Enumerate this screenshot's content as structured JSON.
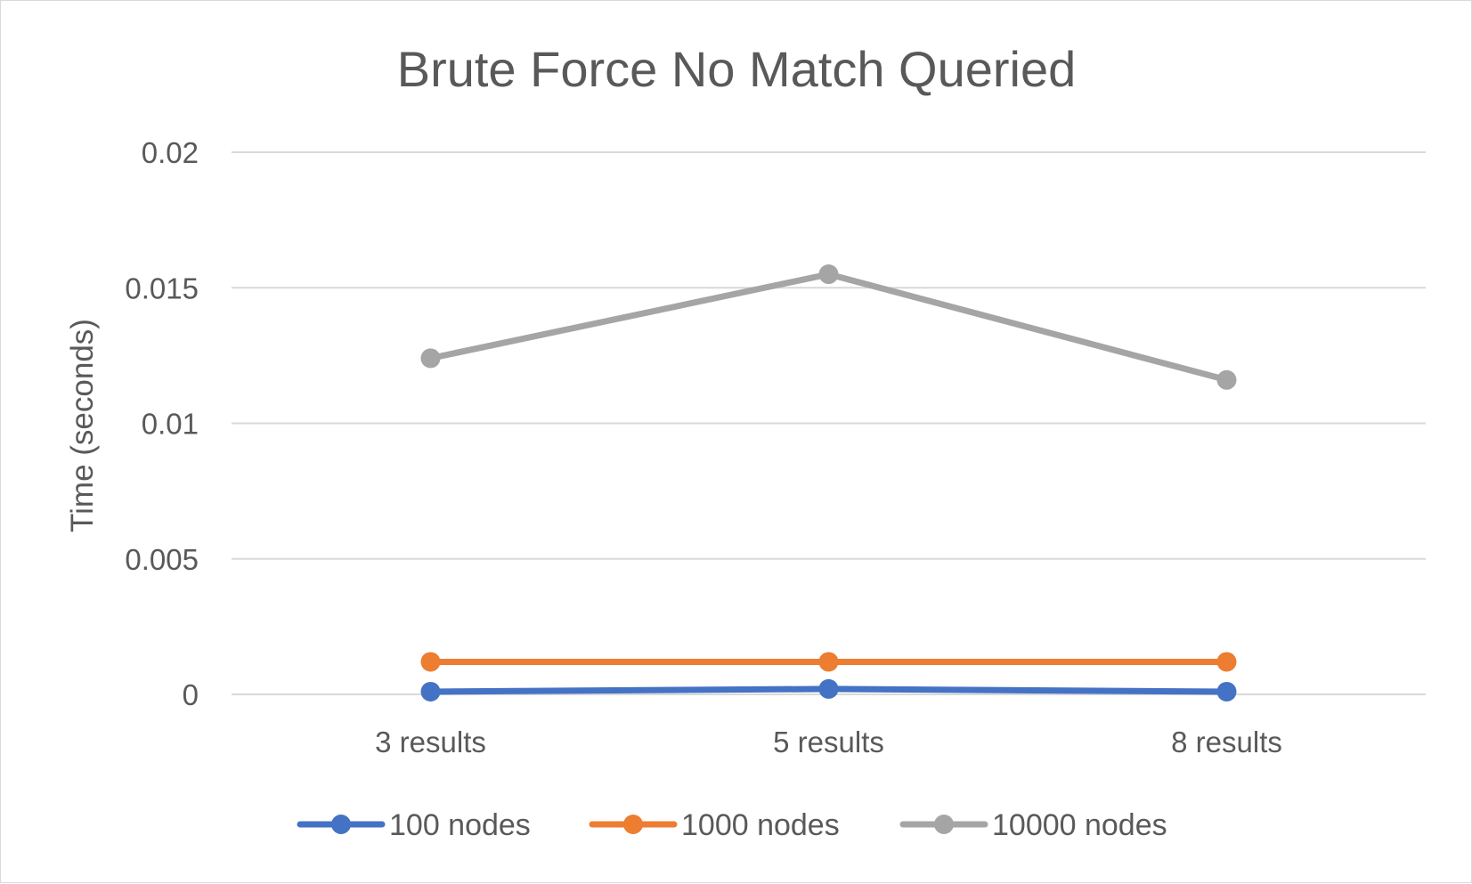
{
  "chart_data": {
    "type": "line",
    "title": "Brute Force No Match Queried",
    "xlabel": "",
    "ylabel": "Time (seconds)",
    "categories": [
      "3 results",
      "5 results",
      "8 results"
    ],
    "ylim": [
      0,
      0.02
    ],
    "yticks": [
      "0",
      "0.005",
      "0.01",
      "0.015",
      "0.02"
    ],
    "ytick_values": [
      0,
      0.005,
      0.01,
      0.015,
      0.02
    ],
    "grid": true,
    "legend_position": "bottom",
    "series": [
      {
        "name": "100 nodes",
        "color": "#4472c4",
        "values": [
          0.0001,
          0.0002,
          0.0001
        ]
      },
      {
        "name": "1000 nodes",
        "color": "#ed7d31",
        "values": [
          0.0012,
          0.0012,
          0.0012
        ]
      },
      {
        "name": "10000 nodes",
        "color": "#a5a5a5",
        "values": [
          0.0124,
          0.0155,
          0.0116
        ]
      }
    ]
  }
}
